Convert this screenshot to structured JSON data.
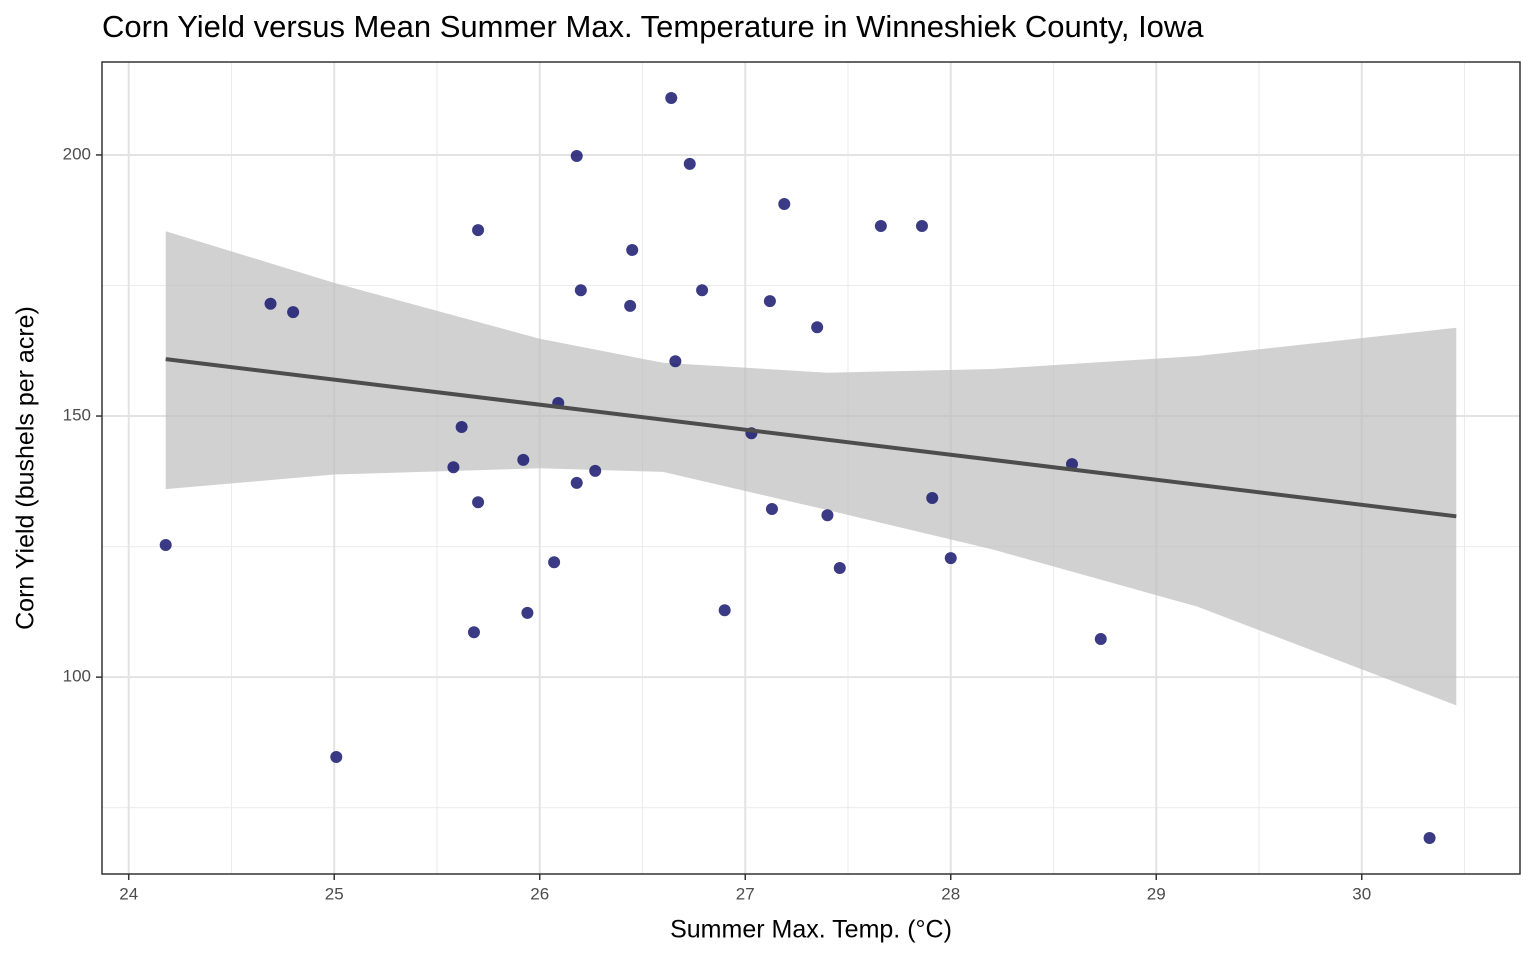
{
  "chart_data": {
    "type": "scatter",
    "title": "Corn Yield versus Mean Summer Max. Temperature in Winneshiek County, Iowa",
    "x_label": "Summer Max. Temp. (°C)",
    "y_label": "Corn Yield (bushels per acre)",
    "x": [
      24.18,
      24.69,
      24.8,
      25.01,
      25.58,
      25.62,
      25.7,
      25.7,
      25.68,
      25.92,
      25.94,
      26.07,
      26.09,
      26.18,
      26.18,
      26.2,
      26.27,
      26.44,
      26.45,
      26.64,
      26.66,
      26.73,
      26.79,
      26.9,
      27.03,
      27.12,
      27.13,
      27.19,
      27.35,
      27.4,
      27.46,
      27.66,
      27.86,
      27.91,
      28.0,
      28.59,
      28.73,
      30.33
    ],
    "y": [
      125.3,
      171.5,
      169.9,
      84.7,
      140.2,
      147.9,
      185.6,
      133.5,
      108.6,
      141.6,
      112.3,
      122.0,
      152.5,
      199.8,
      137.2,
      174.1,
      139.5,
      171.1,
      181.8,
      210.9,
      160.5,
      198.3,
      174.1,
      112.8,
      146.7,
      172.0,
      132.2,
      190.6,
      167.0,
      131.0,
      120.9,
      186.4,
      186.4,
      134.3,
      122.8,
      140.8,
      107.3,
      69.2
    ],
    "color": "#191970",
    "fit": {
      "x": [
        24.18,
        30.46
      ],
      "y": [
        160.9,
        130.8
      ],
      "color": "#4d4d4d"
    },
    "band": {
      "x": [
        24.18,
        25,
        26,
        26.6,
        27.4,
        28.2,
        29.2,
        30.46
      ],
      "upper": [
        185.4,
        175.5,
        164.8,
        160.2,
        158.3,
        159.0,
        161.5,
        166.9
      ],
      "lower": [
        136.0,
        138.8,
        140.0,
        139.3,
        132.0,
        124.5,
        113.5,
        94.6
      ],
      "color": "#bebebe"
    },
    "xlim": [
      23.87,
      30.77
    ],
    "ylim": [
      62.3,
      217.8
    ],
    "xticks": [
      24,
      25,
      26,
      27,
      28,
      29,
      30
    ],
    "yticks": [
      100,
      150,
      200
    ],
    "x_minor_ticks": [
      24.5,
      25.5,
      26.5,
      27.5,
      28.5,
      29.5,
      30.5
    ],
    "y_minor_ticks": [
      75,
      125,
      175
    ],
    "grid": true
  }
}
